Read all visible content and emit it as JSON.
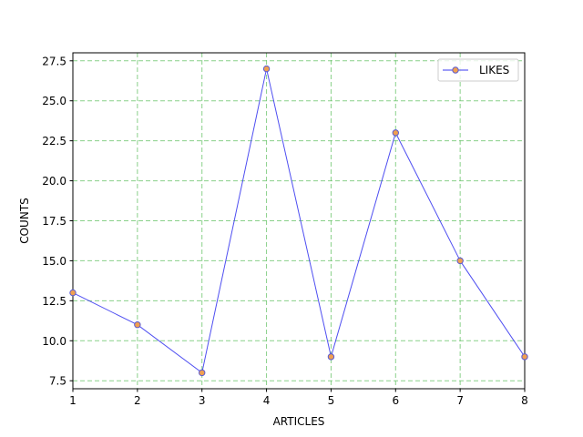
{
  "chart_data": {
    "type": "line",
    "title": "",
    "xlabel": "ARTICLES",
    "ylabel": "COUNTS",
    "x": [
      1,
      2,
      3,
      4,
      5,
      6,
      7,
      8
    ],
    "series": [
      {
        "name": "LIKES",
        "values": [
          13,
          11,
          8,
          27,
          9,
          23,
          15,
          9
        ]
      }
    ],
    "xlim": [
      1,
      8
    ],
    "ylim": [
      7,
      28
    ],
    "xticks": [
      "1",
      "2",
      "3",
      "4",
      "5",
      "6",
      "7",
      "8"
    ],
    "yticks": [
      "7.5",
      "10.0",
      "12.5",
      "15.0",
      "17.5",
      "20.0",
      "22.5",
      "25.0",
      "27.5"
    ],
    "grid": true,
    "legend_position": "top-right",
    "colors": {
      "line": "#3b3bf0",
      "marker_fill": "#f0a050",
      "marker_edge": "#5a5ad0",
      "grid": "#6cc46c"
    }
  }
}
